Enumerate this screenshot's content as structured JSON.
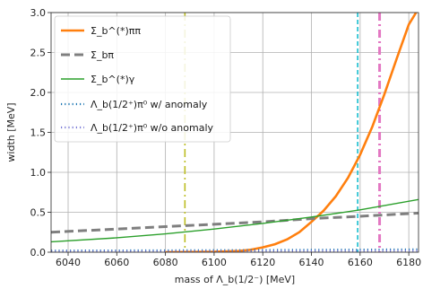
{
  "chart_data": {
    "type": "line",
    "title": "",
    "xlabel": "mass of Λ_b(1/2⁻) [MeV]",
    "ylabel": "width [MeV]",
    "xlim": [
      6033,
      6184
    ],
    "ylim": [
      0.0,
      3.0
    ],
    "x_ticks": [
      6040,
      6060,
      6080,
      6100,
      6120,
      6140,
      6160,
      6180
    ],
    "y_ticks": [
      0.0,
      0.5,
      1.0,
      1.5,
      2.0,
      2.5,
      3.0
    ],
    "x_tick_labels": [
      "6040",
      "6060",
      "6080",
      "6100",
      "6120",
      "6140",
      "6160",
      "6180"
    ],
    "y_tick_labels": [
      "0.0",
      "0.5",
      "1.0",
      "1.5",
      "2.0",
      "2.5",
      "3.0"
    ],
    "grid": true,
    "legend_position": "top-left",
    "series": [
      {
        "name": "Σ_b^(*)ππ",
        "style": "solid",
        "color": "#ff7f0e",
        "x": [
          6080,
          6100,
          6110,
          6115,
          6120,
          6125,
          6130,
          6135,
          6140,
          6145,
          6150,
          6155,
          6160,
          6165,
          6170,
          6175,
          6180,
          6183
        ],
        "y": [
          0.0,
          0.005,
          0.015,
          0.03,
          0.06,
          0.1,
          0.16,
          0.25,
          0.38,
          0.52,
          0.7,
          0.93,
          1.22,
          1.57,
          1.98,
          2.42,
          2.85,
          3.0
        ]
      },
      {
        "name": "Σ_bπ",
        "style": "dashed",
        "color": "#7f7f7f",
        "x": [
          6033,
          6060,
          6080,
          6100,
          6120,
          6140,
          6160,
          6184
        ],
        "y": [
          0.25,
          0.29,
          0.32,
          0.35,
          0.38,
          0.42,
          0.45,
          0.49
        ]
      },
      {
        "name": "Σ_b^(*)γ",
        "style": "solid",
        "color": "#2ca02c",
        "x": [
          6033,
          6060,
          6080,
          6100,
          6120,
          6140,
          6160,
          6184
        ],
        "y": [
          0.13,
          0.18,
          0.23,
          0.29,
          0.36,
          0.44,
          0.53,
          0.66
        ]
      },
      {
        "name": "Λ_b(1/2⁺)π⁰ w/ anomaly",
        "style": "dotted",
        "color": "#1f77b4",
        "x": [
          6033,
          6080,
          6120,
          6160,
          6184
        ],
        "y": [
          0.02,
          0.023,
          0.027,
          0.032,
          0.035
        ]
      },
      {
        "name": "Λ_b(1/2⁺)π⁰ w/o anomaly",
        "style": "dotted",
        "color": "#7b7bd6",
        "x": [
          6033,
          6080,
          6120,
          6160,
          6184
        ],
        "y": [
          0.01,
          0.012,
          0.014,
          0.016,
          0.018
        ]
      }
    ],
    "vertical_lines": [
      {
        "x": 6088,
        "color": "#bcbd22",
        "style": "dashdot"
      },
      {
        "x": 6159,
        "color": "#17becf",
        "style": "dashed"
      },
      {
        "x": 6168,
        "color": "#e377c2",
        "style": "dashdot"
      }
    ]
  }
}
